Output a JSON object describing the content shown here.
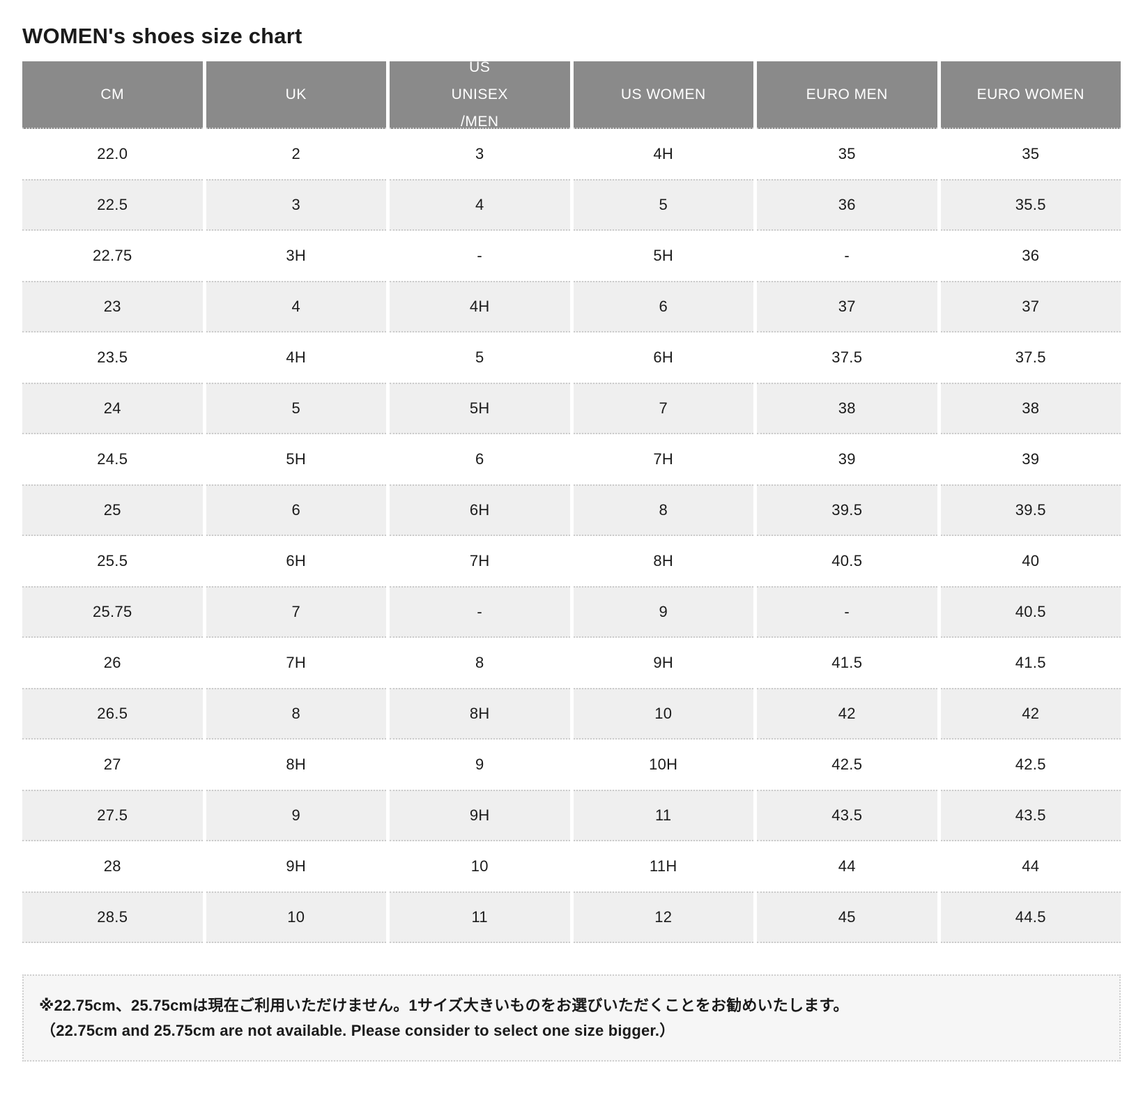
{
  "page": {
    "title": "WOMEN's shoes size chart"
  },
  "table": {
    "columns": [
      {
        "lines": [
          "CM"
        ]
      },
      {
        "lines": [
          "UK"
        ]
      },
      {
        "lines": [
          "US",
          "UNISEX",
          "/MEN"
        ]
      },
      {
        "lines": [
          "US WOMEN"
        ]
      },
      {
        "lines": [
          "EURO MEN"
        ]
      },
      {
        "lines": [
          "EURO WOMEN"
        ]
      }
    ],
    "rows": [
      [
        "22.0",
        "2",
        "3",
        "4H",
        "35",
        "35"
      ],
      [
        "22.5",
        "3",
        "4",
        "5",
        "36",
        "35.5"
      ],
      [
        "22.75",
        "3H",
        "-",
        "5H",
        "-",
        "36"
      ],
      [
        "23",
        "4",
        "4H",
        "6",
        "37",
        "37"
      ],
      [
        "23.5",
        "4H",
        "5",
        "6H",
        "37.5",
        "37.5"
      ],
      [
        "24",
        "5",
        "5H",
        "7",
        "38",
        "38"
      ],
      [
        "24.5",
        "5H",
        "6",
        "7H",
        "39",
        "39"
      ],
      [
        "25",
        "6",
        "6H",
        "8",
        "39.5",
        "39.5"
      ],
      [
        "25.5",
        "6H",
        "7H",
        "8H",
        "40.5",
        "40"
      ],
      [
        "25.75",
        "7",
        "-",
        "9",
        "-",
        "40.5"
      ],
      [
        "26",
        "7H",
        "8",
        "9H",
        "41.5",
        "41.5"
      ],
      [
        "26.5",
        "8",
        "8H",
        "10",
        "42",
        "42"
      ],
      [
        "27",
        "8H",
        "9",
        "10H",
        "42.5",
        "42.5"
      ],
      [
        "27.5",
        "9",
        "9H",
        "11",
        "43.5",
        "43.5"
      ],
      [
        "28",
        "9H",
        "10",
        "11H",
        "44",
        "44"
      ],
      [
        "28.5",
        "10",
        "11",
        "12",
        "45",
        "44.5"
      ]
    ]
  },
  "note": {
    "jp": "※22.75cm、25.75cmは現在ご利用いただけません。1サイズ大きいものをお選びいただくことをお勧めいたします。",
    "en": "（22.75cm and 25.75cm are not available. Please consider to select one size bigger.）"
  },
  "colors": {
    "header_bg": "#8a8a8a",
    "header_text": "#ffffff",
    "alt_row_bg": "#efefef",
    "dotted_border": "#cbcbcb",
    "note_bg": "#f6f6f6",
    "text": "#1b1b1b"
  }
}
